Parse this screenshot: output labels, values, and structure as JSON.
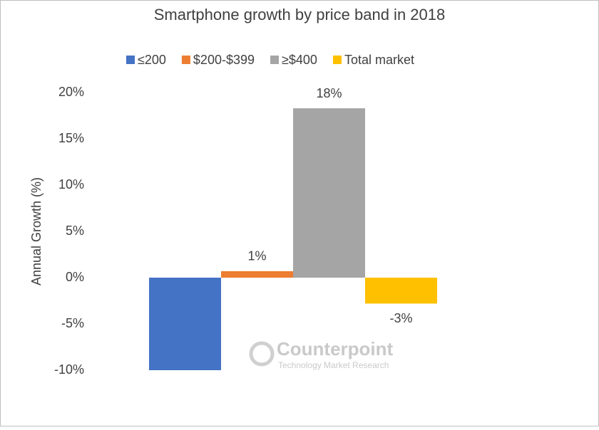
{
  "chart_data": {
    "type": "bar",
    "title": "Smartphone growth by price band in 2018",
    "y_label": "Annual Growth (%)",
    "categories": [
      null
    ],
    "series": [
      {
        "name": "≤200",
        "color": "#4472c4",
        "values": [
          -10
        ]
      },
      {
        "name": "$200-$399",
        "color": "#ed7d31",
        "values": [
          0.7
        ],
        "value_labels": [
          "1%"
        ]
      },
      {
        "name": "≥$400",
        "color": "#a5a5a5",
        "values": [
          18.3
        ],
        "value_labels": [
          "18%"
        ]
      },
      {
        "name": "Total market",
        "color": "#ffc000",
        "values": [
          -2.8
        ],
        "value_labels": [
          "-3%"
        ]
      }
    ],
    "ylim": [
      -10,
      20
    ],
    "yticks": [
      {
        "value": -10,
        "label": "-10%"
      },
      {
        "value": -5,
        "label": "-5%"
      },
      {
        "value": 0,
        "label": "0%"
      },
      {
        "value": 5,
        "label": "5%"
      },
      {
        "value": 10,
        "label": "10%"
      },
      {
        "value": 15,
        "label": "15%"
      },
      {
        "value": 20,
        "label": "20%"
      }
    ],
    "grid": false,
    "legend": "top",
    "watermark": {
      "name": "Counterpoint",
      "tagline": "Technology Market Research"
    }
  }
}
